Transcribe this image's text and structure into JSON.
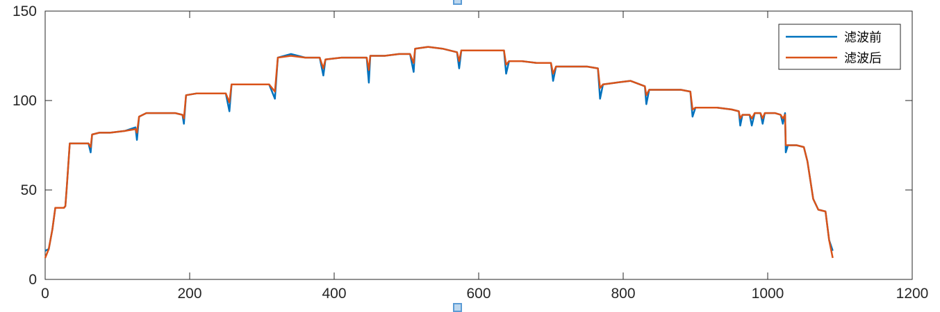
{
  "chart_data": {
    "type": "line",
    "xlim": [
      0,
      1200
    ],
    "ylim": [
      0,
      150
    ],
    "xticks": [
      0,
      200,
      400,
      600,
      800,
      1000,
      1200
    ],
    "yticks": [
      0,
      50,
      100,
      150
    ],
    "grid": false,
    "legend": "top-right",
    "series": [
      {
        "name": "滤波前",
        "color": "#0072bd",
        "points": [
          [
            0,
            16
          ],
          [
            5,
            17
          ],
          [
            10,
            28
          ],
          [
            14,
            40
          ],
          [
            20,
            40
          ],
          [
            26,
            40
          ],
          [
            28,
            41
          ],
          [
            30,
            52
          ],
          [
            34,
            76
          ],
          [
            40,
            76
          ],
          [
            50,
            76
          ],
          [
            60,
            76
          ],
          [
            63,
            71
          ],
          [
            65,
            81
          ],
          [
            75,
            82
          ],
          [
            90,
            82
          ],
          [
            110,
            83
          ],
          [
            125,
            85
          ],
          [
            127,
            78
          ],
          [
            130,
            91
          ],
          [
            140,
            93
          ],
          [
            160,
            93
          ],
          [
            180,
            93
          ],
          [
            190,
            92
          ],
          [
            192,
            87
          ],
          [
            195,
            103
          ],
          [
            210,
            104
          ],
          [
            230,
            104
          ],
          [
            250,
            104
          ],
          [
            255,
            94
          ],
          [
            258,
            109
          ],
          [
            270,
            109
          ],
          [
            290,
            109
          ],
          [
            310,
            109
          ],
          [
            318,
            101
          ],
          [
            322,
            124
          ],
          [
            340,
            126
          ],
          [
            360,
            124
          ],
          [
            380,
            124
          ],
          [
            385,
            114
          ],
          [
            388,
            123
          ],
          [
            410,
            124
          ],
          [
            430,
            124
          ],
          [
            445,
            124
          ],
          [
            448,
            110
          ],
          [
            450,
            125
          ],
          [
            470,
            125
          ],
          [
            490,
            126
          ],
          [
            505,
            126
          ],
          [
            510,
            116
          ],
          [
            512,
            129
          ],
          [
            530,
            130
          ],
          [
            550,
            129
          ],
          [
            570,
            127
          ],
          [
            573,
            118
          ],
          [
            576,
            128
          ],
          [
            600,
            128
          ],
          [
            620,
            128
          ],
          [
            635,
            128
          ],
          [
            638,
            115
          ],
          [
            642,
            122
          ],
          [
            660,
            122
          ],
          [
            680,
            121
          ],
          [
            700,
            121
          ],
          [
            703,
            111
          ],
          [
            707,
            119
          ],
          [
            730,
            119
          ],
          [
            750,
            119
          ],
          [
            765,
            118
          ],
          [
            768,
            101
          ],
          [
            772,
            109
          ],
          [
            790,
            110
          ],
          [
            810,
            111
          ],
          [
            830,
            108
          ],
          [
            832,
            98
          ],
          [
            836,
            106
          ],
          [
            860,
            106
          ],
          [
            880,
            106
          ],
          [
            893,
            105
          ],
          [
            896,
            91
          ],
          [
            900,
            96
          ],
          [
            930,
            96
          ],
          [
            950,
            95
          ],
          [
            960,
            94
          ],
          [
            962,
            86
          ],
          [
            965,
            92
          ],
          [
            975,
            92
          ],
          [
            978,
            86
          ],
          [
            982,
            93
          ],
          [
            990,
            93
          ],
          [
            993,
            87
          ],
          [
            996,
            93
          ],
          [
            1010,
            93
          ],
          [
            1018,
            92
          ],
          [
            1021,
            87
          ],
          [
            1024,
            93
          ],
          [
            1025,
            71
          ],
          [
            1028,
            75
          ],
          [
            1040,
            75
          ],
          [
            1050,
            74
          ],
          [
            1055,
            66
          ],
          [
            1063,
            45
          ],
          [
            1070,
            39
          ],
          [
            1080,
            38
          ],
          [
            1085,
            22
          ],
          [
            1090,
            16
          ]
        ]
      },
      {
        "name": "滤波后",
        "color": "#d95319",
        "points": [
          [
            0,
            12
          ],
          [
            5,
            17
          ],
          [
            10,
            28
          ],
          [
            14,
            40
          ],
          [
            20,
            40
          ],
          [
            26,
            40
          ],
          [
            28,
            41
          ],
          [
            30,
            52
          ],
          [
            34,
            76
          ],
          [
            40,
            76
          ],
          [
            50,
            76
          ],
          [
            60,
            76
          ],
          [
            63,
            74
          ],
          [
            65,
            81
          ],
          [
            75,
            82
          ],
          [
            90,
            82
          ],
          [
            110,
            83
          ],
          [
            125,
            84
          ],
          [
            127,
            82
          ],
          [
            130,
            91
          ],
          [
            140,
            93
          ],
          [
            160,
            93
          ],
          [
            180,
            93
          ],
          [
            190,
            92
          ],
          [
            192,
            90
          ],
          [
            195,
            103
          ],
          [
            210,
            104
          ],
          [
            230,
            104
          ],
          [
            250,
            104
          ],
          [
            255,
            99
          ],
          [
            258,
            109
          ],
          [
            270,
            109
          ],
          [
            290,
            109
          ],
          [
            310,
            109
          ],
          [
            318,
            105
          ],
          [
            322,
            124
          ],
          [
            340,
            125
          ],
          [
            360,
            124
          ],
          [
            380,
            124
          ],
          [
            385,
            118
          ],
          [
            388,
            123
          ],
          [
            410,
            124
          ],
          [
            430,
            124
          ],
          [
            445,
            124
          ],
          [
            448,
            117
          ],
          [
            450,
            125
          ],
          [
            470,
            125
          ],
          [
            490,
            126
          ],
          [
            505,
            126
          ],
          [
            510,
            121
          ],
          [
            512,
            129
          ],
          [
            530,
            130
          ],
          [
            550,
            129
          ],
          [
            570,
            127
          ],
          [
            573,
            122
          ],
          [
            576,
            128
          ],
          [
            600,
            128
          ],
          [
            620,
            128
          ],
          [
            635,
            128
          ],
          [
            638,
            120
          ],
          [
            642,
            122
          ],
          [
            660,
            122
          ],
          [
            680,
            121
          ],
          [
            700,
            121
          ],
          [
            703,
            115
          ],
          [
            707,
            119
          ],
          [
            730,
            119
          ],
          [
            750,
            119
          ],
          [
            765,
            118
          ],
          [
            768,
            107
          ],
          [
            772,
            109
          ],
          [
            790,
            110
          ],
          [
            810,
            111
          ],
          [
            830,
            108
          ],
          [
            832,
            103
          ],
          [
            836,
            106
          ],
          [
            860,
            106
          ],
          [
            880,
            106
          ],
          [
            893,
            105
          ],
          [
            896,
            95
          ],
          [
            900,
            96
          ],
          [
            930,
            96
          ],
          [
            950,
            95
          ],
          [
            960,
            94
          ],
          [
            962,
            90
          ],
          [
            965,
            92
          ],
          [
            975,
            92
          ],
          [
            978,
            90
          ],
          [
            982,
            93
          ],
          [
            990,
            93
          ],
          [
            993,
            90
          ],
          [
            996,
            93
          ],
          [
            1010,
            93
          ],
          [
            1018,
            92
          ],
          [
            1021,
            90
          ],
          [
            1024,
            92
          ],
          [
            1025,
            75
          ],
          [
            1028,
            75
          ],
          [
            1040,
            75
          ],
          [
            1050,
            74
          ],
          [
            1055,
            66
          ],
          [
            1063,
            45
          ],
          [
            1070,
            39
          ],
          [
            1080,
            38
          ],
          [
            1085,
            22
          ],
          [
            1090,
            12
          ]
        ]
      }
    ]
  },
  "legend": {
    "items": [
      {
        "label": "滤波前"
      },
      {
        "label": "滤波后"
      }
    ]
  }
}
